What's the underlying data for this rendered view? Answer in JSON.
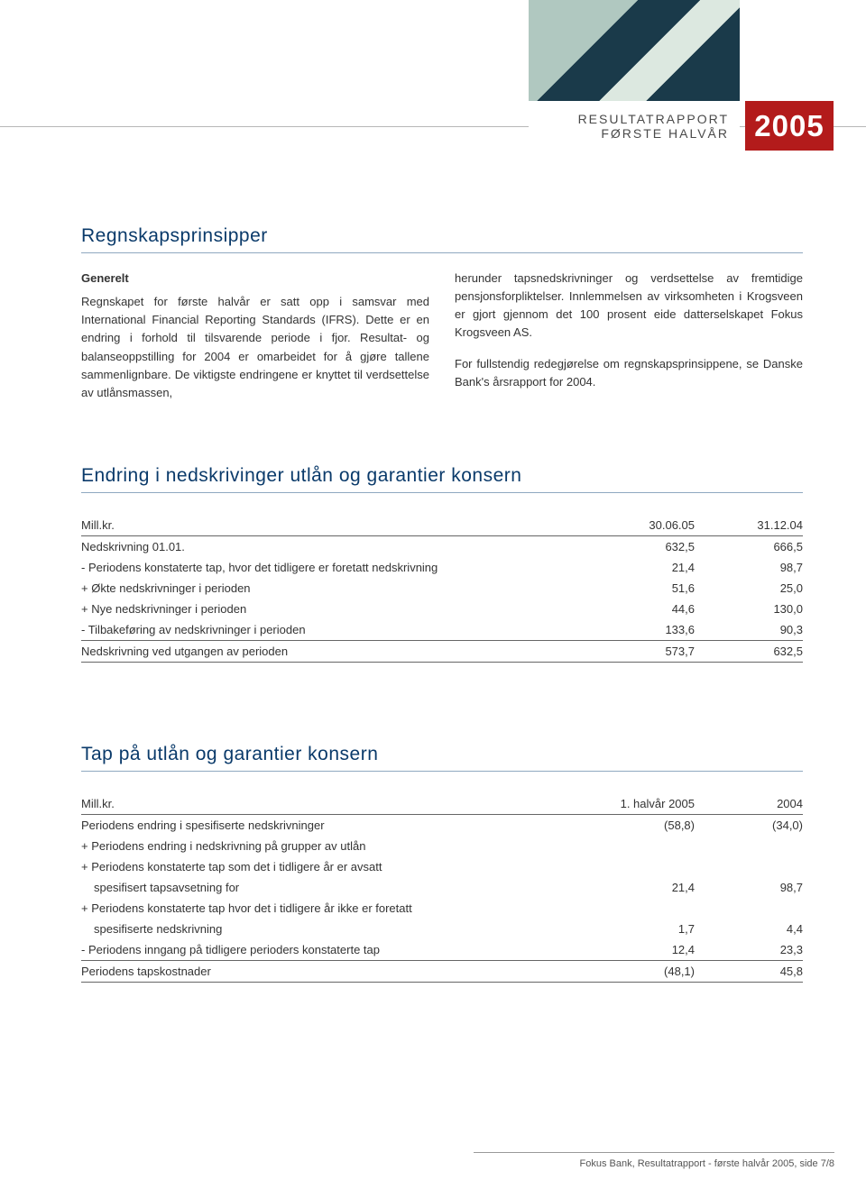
{
  "colors": {
    "accent_red": "#b31b1b",
    "title_blue": "#0a3a6a",
    "rule_grey": "#666666",
    "title_underline": "#8fa8c0",
    "text": "#333333",
    "header_text": "#4a4a4a",
    "top_rule": "#b8b8b8"
  },
  "header": {
    "line1": "RESULTATRAPPORT",
    "line2": "FØRSTE HALVÅR",
    "year": "2005"
  },
  "section1": {
    "title": "Regnskapsprinsipper",
    "subhead": "Generelt",
    "left_para": "Regnskapet for første halvår er satt opp i samsvar med International Financial Reporting Standards (IFRS). Dette er en endring i forhold til tilsvarende periode i fjor. Resultat- og balanseoppstilling for 2004 er omarbeidet for å gjøre tallene sammenlignbare. De viktigste endringene er knyttet til verdsettelse av utlånsmassen,",
    "right_para1": "herunder tapsnedskrivninger og verdsettelse av fremtidige pensjonsforpliktelser. Innlemmelsen av virksomheten i Krogsveen er gjort gjennom det 100 prosent eide datterselskapet Fokus Krogsveen AS.",
    "right_para2": "For fullstendig redegjørelse om regnskapsprinsippene, se Danske Bank's årsrapport for 2004."
  },
  "table1": {
    "title": "Endring i nedskrivinger utlån og garantier konsern",
    "headers": [
      "Mill.kr.",
      "30.06.05",
      "31.12.04"
    ],
    "rows": [
      {
        "label": "Nedskrivning 01.01.",
        "c1": "632,5",
        "c2": "666,5"
      },
      {
        "label": "-  Periodens konstaterte tap, hvor det tidligere er foretatt nedskrivning",
        "c1": "21,4",
        "c2": "98,7"
      },
      {
        "label": "+ Økte nedskrivninger i perioden",
        "c1": "51,6",
        "c2": "25,0"
      },
      {
        "label": "+ Nye nedskrivninger i perioden",
        "c1": "44,6",
        "c2": "130,0"
      },
      {
        "label": "-  Tilbakeføring av nedskrivninger i perioden",
        "c1": "133,6",
        "c2": "90,3"
      }
    ],
    "total": {
      "label": "Nedskrivning ved utgangen av perioden",
      "c1": "573,7",
      "c2": "632,5"
    }
  },
  "table2": {
    "title": "Tap på utlån og garantier konsern",
    "headers": [
      "Mill.kr.",
      "1. halvår 2005",
      "2004"
    ],
    "rows": [
      {
        "label": "Periodens endring i spesifiserte nedskrivninger",
        "c1": "(58,8)",
        "c2": "(34,0)"
      },
      {
        "label": "+ Periodens endring i nedskrivning på grupper av utlån",
        "c1": "",
        "c2": ""
      },
      {
        "label": "+ Periodens konstaterte tap som det i tidligere år er avsatt",
        "c1": "",
        "c2": ""
      },
      {
        "label": "spesifisert tapsavsetning for",
        "indent": true,
        "c1": "21,4",
        "c2": "98,7"
      },
      {
        "label": "+ Periodens konstaterte tap hvor det i tidligere år ikke er foretatt",
        "c1": "",
        "c2": ""
      },
      {
        "label": "spesifiserte nedskrivning",
        "indent": true,
        "c1": "1,7",
        "c2": "4,4"
      },
      {
        "label": "-  Periodens inngang på tidligere perioders konstaterte tap",
        "c1": "12,4",
        "c2": "23,3"
      }
    ],
    "total": {
      "label": "Periodens tapskostnader",
      "c1": "(48,1)",
      "c2": "45,8"
    }
  },
  "footer": "Fokus Bank, Resultatrapport - første halvår 2005, side 7/8"
}
